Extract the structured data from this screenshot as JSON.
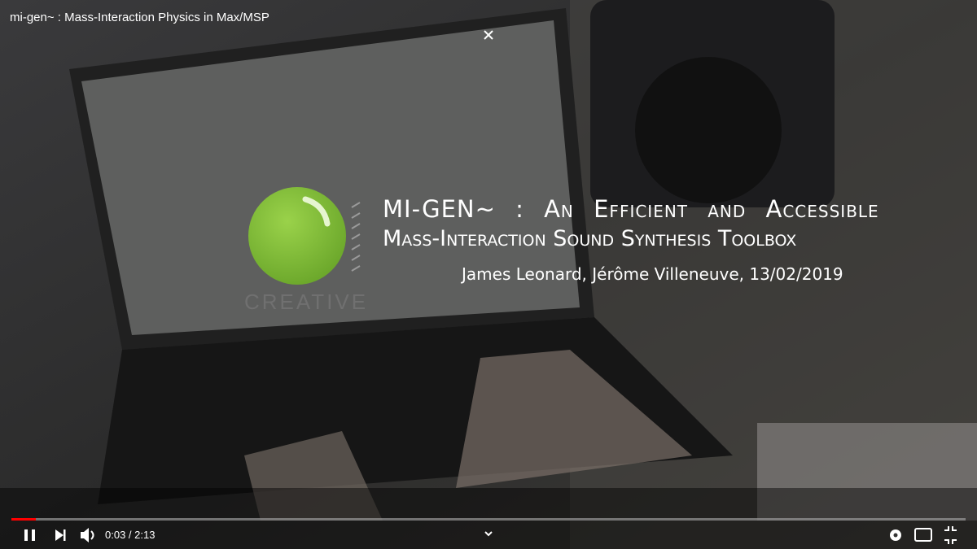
{
  "video": {
    "title": "mi-gen~ : Mass-Interaction Physics in Max/MSP",
    "time": "0:03 / 2:13"
  },
  "slide": {
    "title_lines": [
      "MI-GEN~ : An Efficient and Accessible",
      "Mass-Interaction Sound Synthesis Toolbox"
    ],
    "authors": "James Leonard, Jérôme Villeneuve, 13/02/2019",
    "logo_text": "CREATIVE"
  }
}
